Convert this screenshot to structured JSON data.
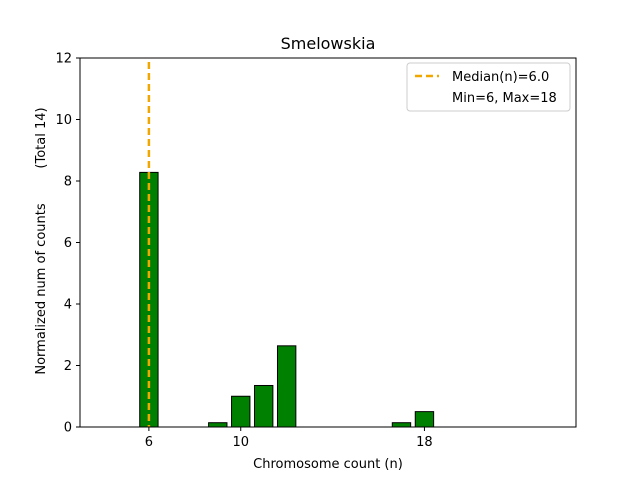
{
  "chart_data": {
    "type": "bar",
    "title": "Smelowskia",
    "xlabel": "Chromosome count (n)",
    "ylabel": "Normalized num of counts",
    "ylabel_secondary": "(Total 14)",
    "xlim": [
      3,
      24.6
    ],
    "ylim": [
      0,
      12
    ],
    "xticks": [
      6,
      10,
      18
    ],
    "yticks": [
      0,
      2,
      4,
      6,
      8,
      10,
      12
    ],
    "bar_width": 0.8,
    "bar_color": "#008000",
    "bar_edge_color": "#000000",
    "bars": [
      {
        "x": 6,
        "value": 8.28
      },
      {
        "x": 9,
        "value": 0.14
      },
      {
        "x": 10,
        "value": 1.0
      },
      {
        "x": 11,
        "value": 1.35
      },
      {
        "x": 12,
        "value": 2.64
      },
      {
        "x": 17,
        "value": 0.14
      },
      {
        "x": 18,
        "value": 0.5
      }
    ],
    "median": {
      "x": 6.0,
      "color": "#f0a800",
      "style": "dashed"
    },
    "legend": {
      "position": "top-right",
      "entries": [
        "Median(n)=6.0",
        "Min=6, Max=18"
      ]
    }
  }
}
